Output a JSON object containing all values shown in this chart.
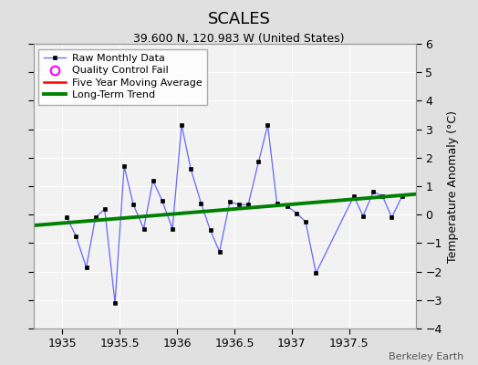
{
  "title": "SCALES",
  "subtitle": "39.600 N, 120.983 W (United States)",
  "ylabel": "Temperature Anomaly (°C)",
  "credit": "Berkeley Earth",
  "xlim": [
    1934.75,
    1938.08
  ],
  "ylim": [
    -4,
    6
  ],
  "yticks": [
    -4,
    -3,
    -2,
    -1,
    0,
    1,
    2,
    3,
    4,
    5,
    6
  ],
  "xticks": [
    1935,
    1935.5,
    1936,
    1936.5,
    1937,
    1937.5
  ],
  "bg_color": "#e0e0e0",
  "plot_bg_color": "#f2f2f2",
  "raw_x": [
    1935.04,
    1935.12,
    1935.21,
    1935.29,
    1935.37,
    1935.46,
    1935.54,
    1935.62,
    1935.71,
    1935.79,
    1935.87,
    1935.96,
    1936.04,
    1936.12,
    1936.21,
    1936.29,
    1936.37,
    1936.46,
    1936.54,
    1936.62,
    1936.71,
    1936.79,
    1936.87,
    1936.96,
    1937.04,
    1937.12,
    1937.21,
    1937.54,
    1937.62,
    1937.71,
    1937.79,
    1937.87,
    1937.96
  ],
  "raw_y": [
    -0.1,
    -0.75,
    -1.85,
    -0.1,
    0.2,
    -3.1,
    1.7,
    0.35,
    -0.5,
    1.2,
    0.5,
    -0.5,
    3.15,
    1.6,
    0.4,
    -0.55,
    -1.3,
    0.45,
    0.35,
    0.35,
    1.85,
    3.15,
    0.4,
    0.3,
    0.05,
    -0.25,
    -2.05,
    0.65,
    -0.05,
    0.8,
    0.65,
    -0.1,
    0.65
  ],
  "trend_x": [
    1934.75,
    1938.08
  ],
  "trend_y": [
    -0.38,
    0.72
  ],
  "raw_line_color": "#6666ff",
  "raw_marker_color": "black",
  "trend_color": "green",
  "ma_color": "red",
  "qc_color": "magenta",
  "legend_entries": [
    "Raw Monthly Data",
    "Quality Control Fail",
    "Five Year Moving Average",
    "Long-Term Trend"
  ]
}
